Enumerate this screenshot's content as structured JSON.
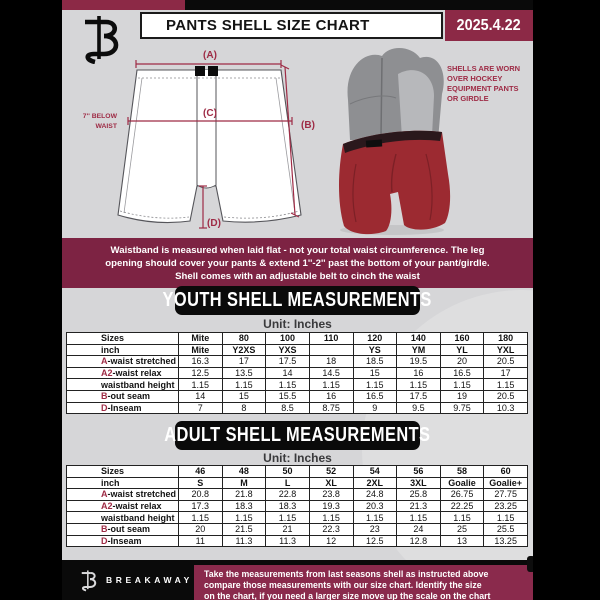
{
  "header": {
    "title": "PANTS SHELL SIZE CHART",
    "date": "2025.4.22"
  },
  "diagram": {
    "label_a": "(A)",
    "label_b": "(B)",
    "label_c": "(C)",
    "label_d": "(D)",
    "waist_note_line1": "7'' BELOW",
    "waist_note_line2": "WAIST",
    "photo_note": [
      "SHELLS ARE WORN",
      "OVER HOCKEY",
      "EQUIPMENT PANTS",
      "OR GIRDLE"
    ]
  },
  "info_banner": {
    "lines": [
      "Waistband is measured when laid flat - not your total waist circumference. The leg",
      "opening should cover your pants & extend 1''-2'' past the bottom of your pant/girdle.",
      "Shell comes with an adjustable belt to cinch the waist"
    ]
  },
  "youth": {
    "heading": "YOUTH SHELL MEASUREMENTS",
    "unit": "Unit: Inches",
    "table": {
      "rows": [
        {
          "header": true,
          "prefix": "",
          "label": "Sizes",
          "values": [
            "Mite",
            "80",
            "100",
            "110",
            "120",
            "140",
            "160",
            "180"
          ]
        },
        {
          "header": true,
          "prefix": "",
          "label": "inch",
          "values": [
            "Mite",
            "Y2XS",
            "YXS",
            "",
            "YS",
            "YM",
            "YL",
            "YXL"
          ]
        },
        {
          "prefix": "A",
          "label": "-waist stretched",
          "values": [
            "16.3",
            "17",
            "17.5",
            "18",
            "18.5",
            "19.5",
            "20",
            "20.5"
          ]
        },
        {
          "prefix": "A2",
          "label": "-waist relax",
          "values": [
            "12.5",
            "13.5",
            "14",
            "14.5",
            "15",
            "16",
            "16.5",
            "17"
          ]
        },
        {
          "prefix": "",
          "label": "waistband height",
          "values": [
            "1.15",
            "1.15",
            "1.15",
            "1.15",
            "1.15",
            "1.15",
            "1.15",
            "1.15"
          ]
        },
        {
          "prefix": "B",
          "label": "-out seam",
          "values": [
            "14",
            "15",
            "15.5",
            "16",
            "16.5",
            "17.5",
            "19",
            "20.5"
          ]
        },
        {
          "prefix": "D",
          "label": "-Inseam",
          "values": [
            "7",
            "8",
            "8.5",
            "8.75",
            "9",
            "9.5",
            "9.75",
            "10.3"
          ]
        }
      ]
    }
  },
  "adult": {
    "heading": "ADULT SHELL MEASUREMENTS",
    "unit": "Unit: Inches",
    "table": {
      "rows": [
        {
          "header": true,
          "prefix": "",
          "label": "Sizes",
          "values": [
            "46",
            "48",
            "50",
            "52",
            "54",
            "56",
            "58",
            "60"
          ]
        },
        {
          "header": true,
          "prefix": "",
          "label": "inch",
          "values": [
            "S",
            "M",
            "L",
            "XL",
            "2XL",
            "3XL",
            "Goalie",
            "Goalie+"
          ]
        },
        {
          "prefix": "A",
          "label": "-waist stretched",
          "values": [
            "20.8",
            "21.8",
            "22.8",
            "23.8",
            "24.8",
            "25.8",
            "26.75",
            "27.75"
          ]
        },
        {
          "prefix": "A2",
          "label": "-waist relax",
          "values": [
            "17.3",
            "18.3",
            "18.3",
            "19.3",
            "20.3",
            "21.3",
            "22.25",
            "23.25"
          ]
        },
        {
          "prefix": "",
          "label": "waistband height",
          "values": [
            "1.15",
            "1.15",
            "1.15",
            "1.15",
            "1.15",
            "1.15",
            "1.15",
            "1.15"
          ]
        },
        {
          "prefix": "B",
          "label": "-out seam",
          "values": [
            "20",
            "21.5",
            "21",
            "22.3",
            "23",
            "24",
            "25",
            "25.5"
          ]
        },
        {
          "prefix": "D",
          "label": "-Inseam",
          "values": [
            "11",
            "11.3",
            "11.3",
            "12",
            "12.5",
            "12.8",
            "13",
            "13.25"
          ]
        }
      ]
    }
  },
  "footer": {
    "brand": "BREAKAWAY",
    "note_lines": [
      "Take the measurements from last seasons shell as instructed above",
      "compare those measurements  with our size chart. Identify the size",
      "on the chart, if you need a larger size move up the scale on the chart"
    ]
  },
  "colors": {
    "maroon": "#8c2946",
    "banner": "#7d2343",
    "footerbox": "#8a2a4c",
    "labelred": "#9e2b45",
    "shellred": "#9c2a31",
    "girdlegray": "#8e8f92"
  }
}
